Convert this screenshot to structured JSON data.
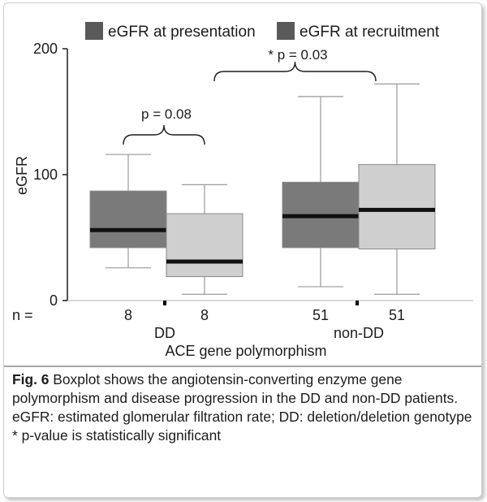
{
  "chart_data": {
    "type": "boxplot",
    "title": "",
    "xlabel": "ACE gene polymorphism",
    "ylabel": "eGFR",
    "ylim": [
      0,
      200
    ],
    "yticks": [
      0,
      100,
      200
    ],
    "n_label": "n =",
    "groups": [
      "DD",
      "non-DD"
    ],
    "legend": {
      "position": "top",
      "entries": [
        {
          "name": "eGFR at presentation",
          "color": "#5a5a5a"
        },
        {
          "name": "eGFR at recruitment",
          "color": "#5a5a5a"
        }
      ]
    },
    "boxes": [
      {
        "group": "DD",
        "series": "eGFR at presentation",
        "n": "8",
        "min": 26,
        "q1": 42,
        "median": 56,
        "q3": 87,
        "max": 116,
        "color": "#7a7a7a"
      },
      {
        "group": "DD",
        "series": "eGFR at recruitment",
        "n": "8",
        "min": 5,
        "q1": 19,
        "median": 31,
        "q3": 69,
        "max": 92,
        "color": "#cfcfcf"
      },
      {
        "group": "non-DD",
        "series": "eGFR at presentation",
        "n": "51",
        "min": 11,
        "q1": 42,
        "median": 67,
        "q3": 94,
        "max": 162,
        "color": "#7a7a7a"
      },
      {
        "group": "non-DD",
        "series": "eGFR at recruitment",
        "n": "51",
        "min": 5,
        "q1": 41,
        "median": 72,
        "q3": 108,
        "max": 172,
        "color": "#cfcfcf"
      }
    ],
    "annotations": [
      {
        "text": "p = 0.08",
        "between": "DD presentation vs DD recruitment"
      },
      {
        "text": "* p = 0.03",
        "between": "DD vs non-DD"
      }
    ]
  },
  "caption": {
    "fig_label": "Fig. 6",
    "text": " Boxplot shows the angiotensin-converting enzyme gene polymorphism and disease progression in the DD and non-DD patients.",
    "abbrev": "eGFR: estimated glomerular filtration rate; DD: deletion/deletion genotype",
    "note": "* p-value is statistically significant"
  }
}
